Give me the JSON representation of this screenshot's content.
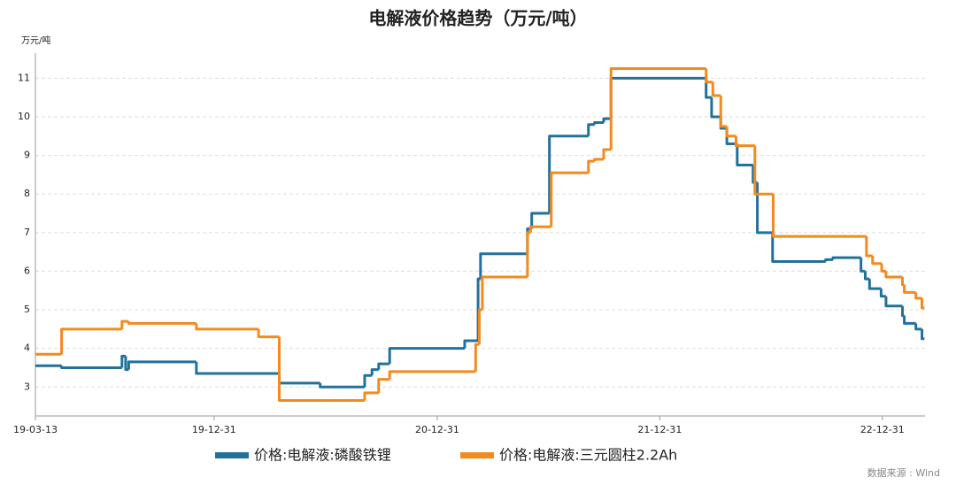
{
  "chart_data": {
    "type": "step-line",
    "title": "电解液价格趋势（万元/吨）",
    "y_label": "万元/吨",
    "source": "数据来源 : Wind",
    "xlim": [
      "19-03-13",
      "23-03-11"
    ],
    "xticks": [
      "19-03-13",
      "19-12-31",
      "20-12-31",
      "21-12-31",
      "22-12-31"
    ],
    "ylim": [
      2.25,
      11.65
    ],
    "yticks": [
      3,
      4,
      5,
      6,
      7,
      8,
      9,
      10,
      11
    ],
    "grid": true,
    "legend": "bottom",
    "series": [
      {
        "name": "价格:电解液:磷酸铁锂",
        "color": "#22719b",
        "x": [
          "19-03-13",
          "19-04-25",
          "19-08-02",
          "19-08-08",
          "19-08-13",
          "19-12-02",
          "20-04-16",
          "20-06-22",
          "20-09-03",
          "20-09-15",
          "20-09-26",
          "20-10-14",
          "21-02-14",
          "21-03-08",
          "21-03-12",
          "21-05-28",
          "21-06-04",
          "21-07-03",
          "21-09-05",
          "21-09-15",
          "21-09-30",
          "21-10-12",
          "22-03-17",
          "22-03-26",
          "22-04-10",
          "22-04-20",
          "22-05-07",
          "22-06-02",
          "22-06-09",
          "22-07-04",
          "22-09-29",
          "22-10-11",
          "22-11-26",
          "22-12-03",
          "22-12-10",
          "22-12-29",
          "23-01-06",
          "23-02-02",
          "23-02-05",
          "23-02-24",
          "23-03-06",
          "23-03-10"
        ],
        "values": [
          3.55,
          3.5,
          3.8,
          3.45,
          3.65,
          3.35,
          3.1,
          3.0,
          3.3,
          3.45,
          3.6,
          4.0,
          4.2,
          5.8,
          6.45,
          7.1,
          7.5,
          9.5,
          9.8,
          9.85,
          9.95,
          11.0,
          10.5,
          10.0,
          9.7,
          9.3,
          8.75,
          8.3,
          7.0,
          6.25,
          6.3,
          6.35,
          6.0,
          5.8,
          5.55,
          5.35,
          5.1,
          4.85,
          4.65,
          4.5,
          4.25,
          4.25
        ]
      },
      {
        "name": "价格:电解液:三元圆柱2.2Ah",
        "color": "#f28a1e",
        "x": [
          "19-03-13",
          "19-04-25",
          "19-08-02",
          "19-08-13",
          "19-12-02",
          "20-03-13",
          "20-04-16",
          "20-09-03",
          "20-09-26",
          "20-10-14",
          "21-03-04",
          "21-03-10",
          "21-03-15",
          "21-05-28",
          "21-06-02",
          "21-07-06",
          "21-09-05",
          "21-09-15",
          "21-09-30",
          "21-10-12",
          "22-03-17",
          "22-03-28",
          "22-04-10",
          "22-04-20",
          "22-05-05",
          "22-06-05",
          "22-07-05",
          "22-12-05",
          "22-12-15",
          "22-12-30",
          "23-01-06",
          "23-02-02",
          "23-02-05",
          "23-02-24",
          "23-03-06",
          "23-03-10"
        ],
        "values": [
          3.85,
          4.5,
          4.7,
          4.65,
          4.5,
          4.3,
          2.65,
          2.85,
          3.2,
          3.4,
          4.1,
          5.0,
          5.85,
          7.0,
          7.15,
          8.55,
          8.85,
          8.9,
          9.15,
          11.25,
          10.9,
          10.55,
          9.75,
          9.5,
          9.25,
          8.0,
          6.9,
          6.4,
          6.2,
          6.0,
          5.85,
          5.65,
          5.45,
          5.3,
          5.05,
          5.05
        ]
      }
    ]
  }
}
